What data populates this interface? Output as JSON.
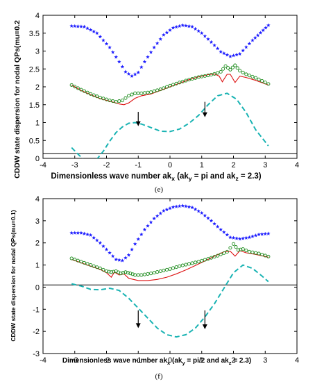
{
  "chart_data": [
    {
      "type": "line",
      "panel_label": "(e)",
      "xlabel": "Dimensionless wave number ak",
      "xlabel_sub": "x",
      "xlabel_paren": "(ak",
      "xlabel_paren_sub1": "y",
      "xlabel_paren_mid": " = pi and ak",
      "xlabel_paren_sub2": "z",
      "xlabel_paren_end": " = 2.3)",
      "ylabel": "CDDW state dispersion for nodal QPs(mu=0.2",
      "xlim": [
        -4,
        4
      ],
      "ylim": [
        0,
        4
      ],
      "xticks": [
        "-4",
        "-3",
        "-2",
        "-1",
        "0",
        "1",
        "2",
        "3",
        "4"
      ],
      "yticks": [
        "0",
        "0.5",
        "1",
        "1.5",
        "2",
        "2.5",
        "3",
        "3.5",
        "4"
      ],
      "hline": 0.13,
      "series": [
        {
          "color": "#1a1aff",
          "style": "star",
          "x": [
            -3.1,
            -2.7,
            -2.3,
            -1.9,
            -1.6,
            -1.4,
            -1.2,
            -1.0,
            -0.8,
            -0.5,
            -0.2,
            0.1,
            0.4,
            0.7,
            1.0,
            1.3,
            1.6,
            1.9,
            2.2,
            2.6,
            3.1
          ],
          "y": [
            3.7,
            3.68,
            3.5,
            3.1,
            2.7,
            2.42,
            2.3,
            2.4,
            2.7,
            3.1,
            3.45,
            3.65,
            3.72,
            3.68,
            3.5,
            3.25,
            2.98,
            2.85,
            2.92,
            3.3,
            3.72
          ]
        },
        {
          "color": "#dd1111",
          "style": "solid",
          "x": [
            -3.1,
            -2.8,
            -2.5,
            -2.2,
            -1.9,
            -1.6,
            -1.45,
            -1.3,
            -1.1,
            -0.9,
            -0.6,
            -0.3,
            0,
            0.3,
            0.6,
            0.9,
            1.2,
            1.4,
            1.55,
            1.65,
            1.8,
            1.9,
            2.05,
            2.2,
            2.4,
            2.7,
            3.1
          ],
          "y": [
            2.05,
            1.9,
            1.78,
            1.67,
            1.6,
            1.52,
            1.5,
            1.55,
            1.68,
            1.75,
            1.8,
            1.9,
            2.0,
            2.1,
            2.2,
            2.28,
            2.34,
            2.36,
            2.3,
            2.14,
            2.35,
            2.35,
            2.12,
            2.3,
            2.26,
            2.18,
            2.05
          ]
        },
        {
          "color": "#1a8a1a",
          "style": "circle",
          "x": [
            -3.1,
            -2.8,
            -2.5,
            -2.2,
            -1.9,
            -1.7,
            -1.5,
            -1.3,
            -1.1,
            -0.9,
            -0.6,
            -0.3,
            0,
            0.3,
            0.6,
            0.9,
            1.2,
            1.4,
            1.6,
            1.75,
            1.9,
            2.05,
            2.2,
            2.4,
            2.7,
            3.1
          ],
          "y": [
            2.05,
            1.92,
            1.8,
            1.7,
            1.62,
            1.58,
            1.62,
            1.75,
            1.82,
            1.82,
            1.85,
            1.93,
            2.03,
            2.12,
            2.2,
            2.27,
            2.32,
            2.36,
            2.42,
            2.58,
            2.48,
            2.6,
            2.45,
            2.35,
            2.25,
            2.08
          ]
        },
        {
          "color": "#19b3b3",
          "style": "dash",
          "x": [
            -3.1,
            -2.9,
            -2.7,
            -2.5,
            -2.3,
            -2.1,
            -1.9,
            -1.7,
            -1.5,
            -1.3,
            -1.1,
            -0.9,
            -0.6,
            -0.3,
            0,
            0.3,
            0.6,
            0.9,
            1.2,
            1.5,
            1.8,
            2.1,
            2.4,
            2.7,
            3.1
          ],
          "y": [
            0.3,
            0.12,
            -0.05,
            -0.1,
            -0.02,
            0.2,
            0.48,
            0.72,
            0.88,
            0.98,
            1.0,
            0.96,
            0.86,
            0.76,
            0.75,
            0.82,
            0.98,
            1.2,
            1.5,
            1.75,
            1.82,
            1.65,
            1.28,
            0.8,
            0.35
          ]
        }
      ],
      "arrows": [
        {
          "x": -1.0,
          "from": 1.3,
          "to": 0.9
        },
        {
          "x": 1.1,
          "from": 1.58,
          "to": 1.15
        }
      ]
    },
    {
      "type": "line",
      "panel_label": "(f)",
      "xlabel": "Dimensionless wave number ak",
      "xlabel_sub": "x",
      "xlabel_paren": "(ak",
      "xlabel_paren_sub1": "y",
      "xlabel_paren_mid": " = pi/2 and ak",
      "xlabel_paren_sub2": "z",
      "xlabel_paren_end": " = 2.3)",
      "ylabel": "CDDW state dispersion for nodal QPs(mu=0.1)",
      "xlim": [
        -4,
        4
      ],
      "ylim": [
        -3,
        4
      ],
      "xticks": [
        "-4",
        "-3",
        "-2",
        "-1",
        "0",
        "1",
        "2",
        "3",
        "4"
      ],
      "yticks": [
        "-3",
        "-2",
        "-1",
        "0",
        "1",
        "2",
        "3",
        "4"
      ],
      "hline": 0.1,
      "series": [
        {
          "color": "#1a1aff",
          "style": "star",
          "x": [
            -3.1,
            -2.8,
            -2.5,
            -2.2,
            -1.9,
            -1.7,
            -1.5,
            -1.3,
            -1.1,
            -0.8,
            -0.5,
            -0.2,
            0.1,
            0.4,
            0.7,
            1.0,
            1.3,
            1.6,
            1.9,
            2.2,
            2.5,
            2.8,
            3.1
          ],
          "y": [
            2.45,
            2.45,
            2.35,
            2.0,
            1.55,
            1.25,
            1.2,
            1.45,
            1.95,
            2.6,
            3.1,
            3.45,
            3.62,
            3.68,
            3.6,
            3.35,
            3.0,
            2.6,
            2.25,
            2.18,
            2.25,
            2.38,
            2.42
          ]
        },
        {
          "color": "#dd1111",
          "style": "solid",
          "x": [
            -3.1,
            -2.8,
            -2.5,
            -2.2,
            -2.0,
            -1.85,
            -1.75,
            -1.6,
            -1.45,
            -1.3,
            -1.15,
            -1.0,
            -0.7,
            -0.4,
            -0.1,
            0.2,
            0.5,
            0.8,
            1.1,
            1.4,
            1.7,
            1.9,
            2.05,
            2.2,
            2.4,
            2.7,
            3.1
          ],
          "y": [
            1.25,
            1.1,
            0.95,
            0.8,
            0.65,
            0.45,
            0.68,
            0.55,
            0.6,
            0.4,
            0.35,
            0.3,
            0.3,
            0.35,
            0.45,
            0.6,
            0.78,
            0.98,
            1.18,
            1.4,
            1.6,
            1.62,
            1.4,
            1.65,
            1.55,
            1.48,
            1.35
          ]
        },
        {
          "color": "#1a8a1a",
          "style": "circle",
          "x": [
            -3.1,
            -2.8,
            -2.5,
            -2.2,
            -2.0,
            -1.85,
            -1.7,
            -1.55,
            -1.4,
            -1.25,
            -1.1,
            -0.9,
            -0.6,
            -0.3,
            0,
            0.3,
            0.6,
            0.9,
            1.2,
            1.5,
            1.8,
            2.0,
            2.15,
            2.3,
            2.5,
            2.8,
            3.1
          ],
          "y": [
            1.3,
            1.15,
            1.0,
            0.85,
            0.72,
            0.68,
            0.72,
            0.62,
            0.68,
            0.62,
            0.55,
            0.55,
            0.62,
            0.72,
            0.82,
            0.95,
            1.05,
            1.15,
            1.28,
            1.42,
            1.6,
            1.95,
            1.68,
            1.72,
            1.6,
            1.52,
            1.38
          ]
        },
        {
          "color": "#19b3b3",
          "style": "dash",
          "x": [
            -3.1,
            -2.8,
            -2.5,
            -2.2,
            -1.9,
            -1.6,
            -1.3,
            -1.0,
            -0.7,
            -0.4,
            -0.1,
            0.2,
            0.5,
            0.8,
            1.1,
            1.4,
            1.7,
            2.0,
            2.3,
            2.6,
            2.9,
            3.1
          ],
          "y": [
            0.15,
            0.05,
            -0.1,
            -0.12,
            -0.05,
            -0.15,
            -0.5,
            -0.95,
            -1.4,
            -1.85,
            -2.15,
            -2.25,
            -2.15,
            -1.85,
            -1.35,
            -0.75,
            -0.05,
            0.65,
            1.0,
            0.85,
            0.5,
            0.25
          ]
        }
      ],
      "arrows": [
        {
          "x": -1.0,
          "from": -1.05,
          "to": -1.85
        },
        {
          "x": 1.1,
          "from": -1.05,
          "to": -1.9
        }
      ]
    }
  ]
}
